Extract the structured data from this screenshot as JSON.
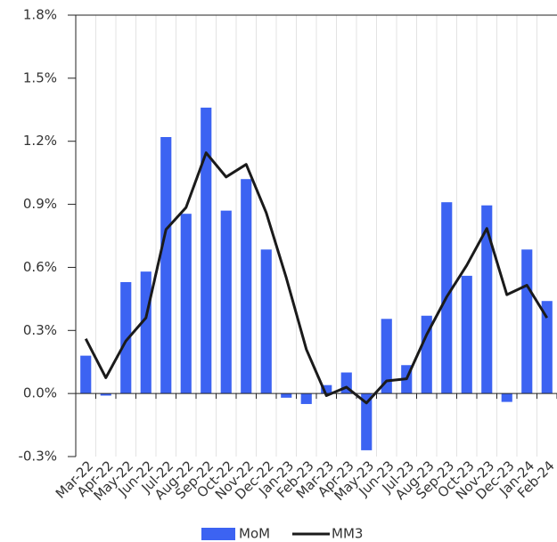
{
  "chart_data": {
    "type": "bar-line",
    "categories": [
      "Mar-22",
      "Apr-22",
      "May-22",
      "Jun-22",
      "Jul-22",
      "Aug-22",
      "Sep-22",
      "Oct-22",
      "Nov-22",
      "Dec-22",
      "Jan-23",
      "Feb-23",
      "Mar-23",
      "Apr-23",
      "May-23",
      "Jun-23",
      "Jul-23",
      "Aug-23",
      "Sep-23",
      "Oct-23",
      "Nov-23",
      "Dec-23",
      "Jan-24",
      "Feb-24"
    ],
    "series": [
      {
        "name": "MoM",
        "type": "bar",
        "color": "#3c63f2",
        "values": [
          0.18,
          -0.01,
          0.53,
          0.58,
          1.22,
          0.855,
          1.36,
          0.87,
          1.02,
          0.685,
          -0.02,
          -0.05,
          0.04,
          0.1,
          -0.27,
          0.355,
          0.135,
          0.37,
          0.91,
          0.56,
          0.895,
          -0.04,
          0.685,
          0.44
        ]
      },
      {
        "name": "MM3",
        "type": "line",
        "color": "#1a1a1a",
        "values": [
          0.26,
          0.075,
          0.25,
          0.36,
          0.78,
          0.885,
          1.145,
          1.03,
          1.09,
          0.86,
          0.55,
          0.21,
          -0.01,
          0.03,
          -0.045,
          0.06,
          0.07,
          0.28,
          0.46,
          0.61,
          0.785,
          0.47,
          0.515,
          0.36
        ]
      }
    ],
    "ylim": [
      -0.3,
      1.8
    ],
    "yticks": [
      {
        "value": -0.3,
        "label": "-0.3%"
      },
      {
        "value": 0.0,
        "label": "0.0%"
      },
      {
        "value": 0.3,
        "label": "0.3%"
      },
      {
        "value": 0.6,
        "label": "0.6%"
      },
      {
        "value": 0.9,
        "label": "0.9%"
      },
      {
        "value": 1.2,
        "label": "1.2%"
      },
      {
        "value": 1.5,
        "label": "1.5%"
      },
      {
        "value": 1.8,
        "label": "1.8%"
      }
    ],
    "grid": true,
    "legend": "bottom"
  }
}
